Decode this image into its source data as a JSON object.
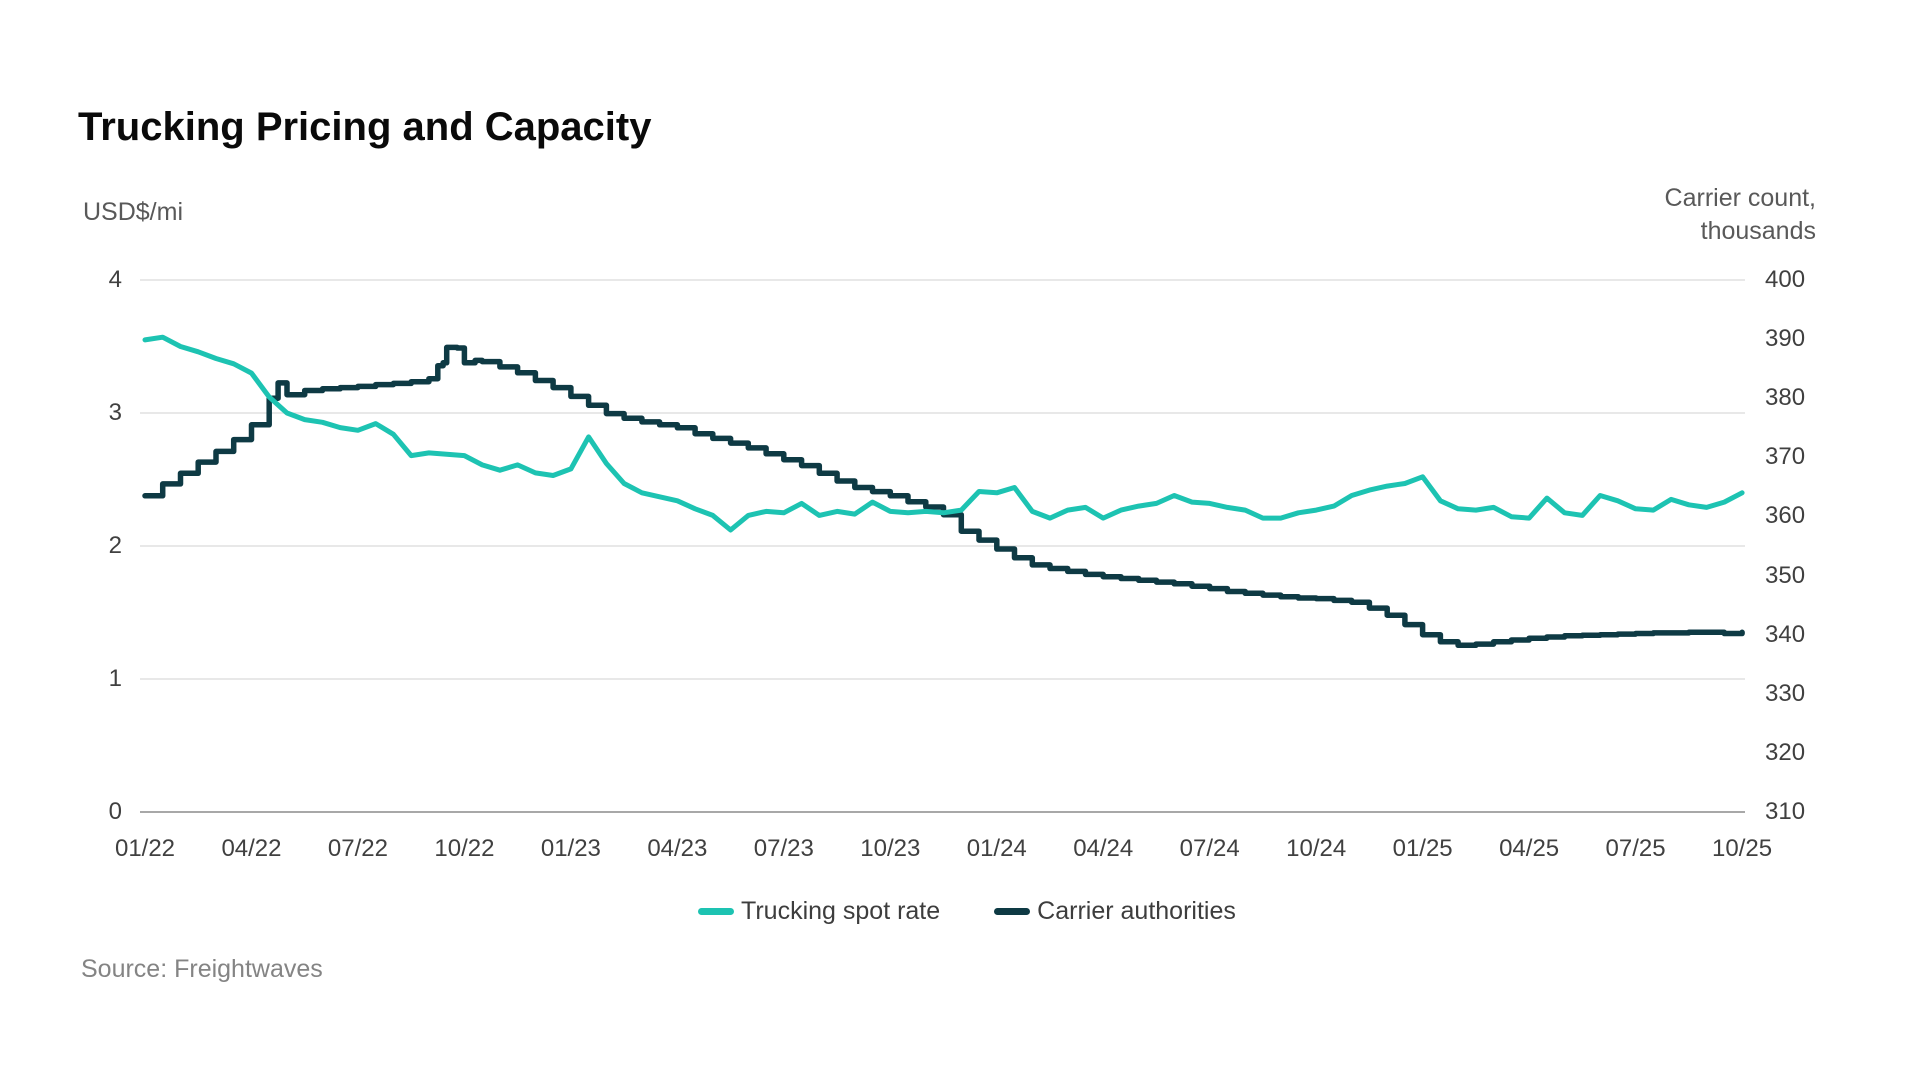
{
  "title": "Trucking Pricing and Capacity",
  "left_axis": {
    "label": "USD$/mi",
    "ticks": [
      4,
      3,
      2,
      1,
      0
    ],
    "min": 0,
    "max": 4
  },
  "right_axis": {
    "label_line1": "Carrier count,",
    "label_line2": "thousands",
    "ticks": [
      400,
      390,
      380,
      370,
      360,
      350,
      340,
      330,
      320,
      310
    ],
    "min": 310,
    "max": 400
  },
  "x_axis": {
    "ticks": [
      "01/22",
      "04/22",
      "07/22",
      "10/22",
      "01/23",
      "04/23",
      "07/23",
      "10/23",
      "01/24",
      "04/24",
      "07/24",
      "10/24",
      "01/25",
      "04/25",
      "07/25",
      "10/25"
    ]
  },
  "legend": [
    {
      "label": "Trucking spot rate",
      "color": "#1dc3b2"
    },
    {
      "label": "Carrier authorities",
      "color": "#0e3a44"
    }
  ],
  "source": "Source: Freightwaves",
  "colors": {
    "teal": "#1dc3b2",
    "navy": "#0e3a44",
    "grid": "#d9d9d9",
    "axis_line": "#8c8c8c",
    "tick_text": "#404040",
    "unit_text": "#595959",
    "source_text": "#848484"
  },
  "chart_data": {
    "type": "line",
    "title": "Trucking Pricing and Capacity",
    "x_unit": "months since 2022-01 (x tick every 3 months)",
    "x_tick_labels": [
      "01/22",
      "04/22",
      "07/22",
      "10/22",
      "01/23",
      "04/23",
      "07/23",
      "10/23",
      "01/24",
      "04/24",
      "07/24",
      "10/24",
      "01/25",
      "04/25",
      "07/25",
      "10/25"
    ],
    "x_tick_positions": [
      0,
      3,
      6,
      9,
      12,
      15,
      18,
      21,
      24,
      27,
      30,
      33,
      36,
      39,
      42,
      45
    ],
    "left_ylabel": "USD$/mi",
    "right_ylabel": "Carrier count, thousands",
    "left_ylim": [
      0,
      4
    ],
    "right_ylim": [
      310,
      400
    ],
    "grid": "horizontal",
    "legend_position": "bottom-center",
    "series": [
      {
        "name": "Trucking spot rate",
        "axis": "left",
        "color": "#1dc3b2",
        "style": "line",
        "x": [
          0,
          0.5,
          1,
          1.5,
          2,
          2.5,
          3,
          3.5,
          4,
          4.5,
          5,
          5.5,
          6,
          6.5,
          7,
          7.5,
          8,
          8.5,
          9,
          9.5,
          10,
          10.5,
          11,
          11.5,
          12,
          12.5,
          13,
          13.5,
          14,
          14.5,
          15,
          15.5,
          16,
          16.5,
          17,
          17.5,
          18,
          18.5,
          19,
          19.5,
          20,
          20.5,
          21,
          21.5,
          22,
          22.5,
          23,
          23.5,
          24,
          24.5,
          25,
          25.5,
          26,
          26.5,
          27,
          27.5,
          28,
          28.5,
          29,
          29.5,
          30,
          30.5,
          31,
          31.5,
          32,
          32.5,
          33,
          33.5,
          34,
          34.5,
          35,
          35.5,
          36,
          36.5,
          37,
          37.5,
          38,
          38.5,
          39,
          39.5,
          40,
          40.5,
          41,
          41.5,
          42,
          42.5,
          43,
          43.5,
          44,
          44.5,
          45
        ],
        "values": [
          3.55,
          3.57,
          3.5,
          3.46,
          3.41,
          3.37,
          3.3,
          3.12,
          3.0,
          2.95,
          2.93,
          2.89,
          2.87,
          2.92,
          2.84,
          2.68,
          2.7,
          2.69,
          2.68,
          2.61,
          2.57,
          2.61,
          2.55,
          2.53,
          2.58,
          2.82,
          2.62,
          2.47,
          2.4,
          2.37,
          2.34,
          2.28,
          2.23,
          2.12,
          2.23,
          2.26,
          2.25,
          2.32,
          2.23,
          2.26,
          2.24,
          2.33,
          2.26,
          2.25,
          2.26,
          2.25,
          2.27,
          2.41,
          2.4,
          2.44,
          2.26,
          2.21,
          2.27,
          2.29,
          2.21,
          2.27,
          2.3,
          2.32,
          2.38,
          2.33,
          2.32,
          2.29,
          2.27,
          2.21,
          2.21,
          2.25,
          2.27,
          2.3,
          2.38,
          2.42,
          2.45,
          2.47,
          2.52,
          2.34,
          2.28,
          2.27,
          2.29,
          2.22,
          2.21,
          2.36,
          2.25,
          2.23,
          2.38,
          2.34,
          2.28,
          2.27,
          2.35,
          2.31,
          2.29,
          2.33,
          2.4
        ]
      },
      {
        "name": "Carrier authorities",
        "axis": "right",
        "color": "#0e3a44",
        "style": "step",
        "x": [
          0,
          0.5,
          1,
          1.5,
          2,
          2.5,
          3,
          3.5,
          3.75,
          4,
          4.5,
          5,
          5.5,
          6,
          6.5,
          7,
          7.5,
          8,
          8.25,
          8.4,
          8.5,
          8.8,
          9,
          9.3,
          9.5,
          10,
          10.5,
          11,
          11.5,
          12,
          12.5,
          13,
          13.5,
          14,
          14.5,
          15,
          15.5,
          16,
          16.5,
          17,
          17.5,
          18,
          18.5,
          19,
          19.5,
          20,
          20.5,
          21,
          21.5,
          22,
          22.5,
          23,
          23.5,
          24,
          24.5,
          25,
          25.5,
          26,
          26.5,
          27,
          27.5,
          28,
          28.5,
          29,
          29.5,
          30,
          30.5,
          31,
          31.5,
          32,
          32.5,
          33,
          33.5,
          34,
          34.5,
          35,
          35.5,
          36,
          36.5,
          37,
          37.5,
          38,
          38.5,
          39,
          39.5,
          40,
          40.5,
          41,
          41.5,
          42,
          42.5,
          43,
          43.5,
          44,
          44.5,
          45
        ],
        "values": [
          363.5,
          365.5,
          367.3,
          369.2,
          371.0,
          373.0,
          375.5,
          380.0,
          382.6,
          380.6,
          381.3,
          381.6,
          381.8,
          382.0,
          382.3,
          382.5,
          382.8,
          383.3,
          385.5,
          386.0,
          388.6,
          388.5,
          386.0,
          386.4,
          386.2,
          385.3,
          384.3,
          383.0,
          381.8,
          380.3,
          378.8,
          377.4,
          376.6,
          376.0,
          375.5,
          375.0,
          374.0,
          373.2,
          372.4,
          371.6,
          370.6,
          369.6,
          368.6,
          367.3,
          366.0,
          364.9,
          364.2,
          363.5,
          362.5,
          361.6,
          360.3,
          357.5,
          356.0,
          354.5,
          353.0,
          351.8,
          351.2,
          350.7,
          350.2,
          349.8,
          349.5,
          349.2,
          348.9,
          348.6,
          348.2,
          347.8,
          347.3,
          347.0,
          346.7,
          346.4,
          346.2,
          346.1,
          345.8,
          345.5,
          344.5,
          343.3,
          341.7,
          340.0,
          338.8,
          338.2,
          338.4,
          338.8,
          339.1,
          339.4,
          339.6,
          339.8,
          339.9,
          340.0,
          340.1,
          340.2,
          340.3,
          340.3,
          340.4,
          340.4,
          340.2,
          340.4
        ]
      }
    ]
  }
}
